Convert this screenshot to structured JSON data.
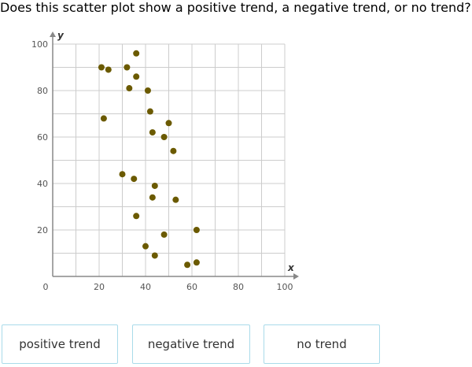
{
  "question": "Does this scatter plot show a positive trend, a negative trend, or no trend?",
  "answers": [
    {
      "label": "positive trend"
    },
    {
      "label": "negative trend"
    },
    {
      "label": "no trend"
    }
  ],
  "chart_data": {
    "type": "scatter",
    "title": "",
    "xlabel": "x",
    "ylabel": "y",
    "xlim": [
      0,
      100
    ],
    "ylim": [
      0,
      100
    ],
    "grid": true,
    "x_ticks": [
      0,
      20,
      40,
      60,
      80,
      100
    ],
    "x_tick_labels": [
      "0",
      "20",
      "40",
      "60",
      "80",
      "100"
    ],
    "y_ticks": [
      20,
      40,
      60,
      80,
      100
    ],
    "y_tick_labels": [
      "20",
      "40",
      "60",
      "80",
      "100"
    ],
    "point_color": "#6b5a00",
    "points": [
      {
        "x": 36,
        "y": 96
      },
      {
        "x": 21,
        "y": 90
      },
      {
        "x": 24,
        "y": 89
      },
      {
        "x": 32,
        "y": 90
      },
      {
        "x": 36,
        "y": 86
      },
      {
        "x": 33,
        "y": 81
      },
      {
        "x": 41,
        "y": 80
      },
      {
        "x": 42,
        "y": 71
      },
      {
        "x": 22,
        "y": 68
      },
      {
        "x": 50,
        "y": 66
      },
      {
        "x": 43,
        "y": 62
      },
      {
        "x": 48,
        "y": 60
      },
      {
        "x": 52,
        "y": 54
      },
      {
        "x": 30,
        "y": 44
      },
      {
        "x": 35,
        "y": 42
      },
      {
        "x": 44,
        "y": 39
      },
      {
        "x": 43,
        "y": 34
      },
      {
        "x": 53,
        "y": 33
      },
      {
        "x": 36,
        "y": 26
      },
      {
        "x": 62,
        "y": 20
      },
      {
        "x": 48,
        "y": 18
      },
      {
        "x": 40,
        "y": 13
      },
      {
        "x": 44,
        "y": 9
      },
      {
        "x": 58,
        "y": 5
      },
      {
        "x": 62,
        "y": 6
      }
    ]
  }
}
